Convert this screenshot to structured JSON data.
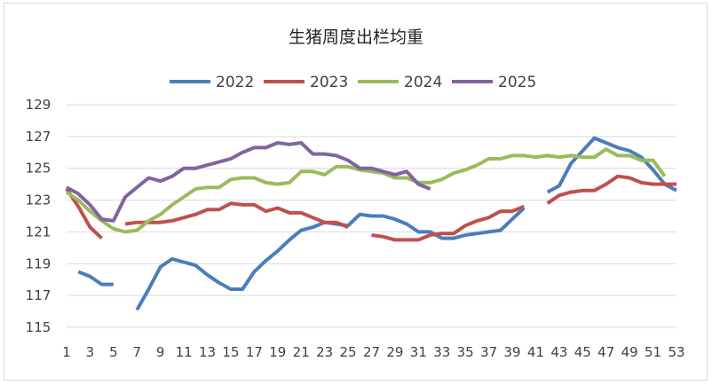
{
  "chart_data": {
    "type": "line",
    "title": "生猪周度出栏均重",
    "xlabel": "",
    "ylabel": "",
    "ylim": [
      115,
      129
    ],
    "yticks": [
      115,
      117,
      119,
      121,
      123,
      125,
      127,
      129
    ],
    "x": [
      1,
      2,
      3,
      4,
      5,
      6,
      7,
      8,
      9,
      10,
      11,
      12,
      13,
      14,
      15,
      16,
      17,
      18,
      19,
      20,
      21,
      22,
      23,
      24,
      25,
      26,
      27,
      28,
      29,
      30,
      31,
      32,
      33,
      34,
      35,
      36,
      37,
      38,
      39,
      40,
      41,
      42,
      43,
      44,
      45,
      46,
      47,
      48,
      49,
      50,
      51,
      52,
      53
    ],
    "xtick_labels": [
      "1",
      "3",
      "5",
      "7",
      "9",
      "11",
      "13",
      "15",
      "17",
      "19",
      "21",
      "23",
      "25",
      "27",
      "29",
      "31",
      "33",
      "35",
      "37",
      "39",
      "41",
      "43",
      "45",
      "47",
      "49",
      "51",
      "53"
    ],
    "legend_position": "top",
    "grid": true,
    "series": [
      {
        "name": "2022",
        "color": "#4a7ebb",
        "values": [
          null,
          118.5,
          118.2,
          117.7,
          117.7,
          null,
          116.1,
          117.4,
          118.8,
          119.3,
          119.1,
          118.9,
          118.3,
          117.8,
          117.4,
          117.4,
          118.5,
          119.2,
          119.8,
          120.5,
          121.1,
          121.3,
          121.6,
          121.5,
          121.4,
          122.1,
          122.0,
          122.0,
          121.8,
          121.5,
          121.0,
          121.0,
          120.6,
          120.6,
          120.8,
          120.9,
          121.0,
          121.1,
          121.8,
          122.5,
          null,
          123.5,
          123.9,
          125.3,
          126.1,
          126.9,
          126.6,
          126.3,
          126.1,
          125.7,
          124.9,
          124.0,
          123.6
        ]
      },
      {
        "name": "2023",
        "color": "#c0504d",
        "values": [
          123.7,
          122.6,
          121.3,
          120.6,
          null,
          121.5,
          121.6,
          121.6,
          121.6,
          121.7,
          121.9,
          122.1,
          122.4,
          122.4,
          122.8,
          122.7,
          122.7,
          122.3,
          122.5,
          122.2,
          122.2,
          121.9,
          121.6,
          121.6,
          121.3,
          null,
          120.8,
          120.7,
          120.5,
          120.5,
          120.5,
          120.8,
          120.9,
          120.9,
          121.4,
          121.7,
          121.9,
          122.3,
          122.3,
          122.6,
          null,
          122.8,
          123.3,
          123.5,
          123.6,
          123.6,
          124.0,
          124.5,
          124.4,
          124.1,
          124.0,
          124.0,
          124.0
        ]
      },
      {
        "name": "2024",
        "color": "#9bbb59",
        "values": [
          123.5,
          123.0,
          122.3,
          121.7,
          121.2,
          121.0,
          121.1,
          121.7,
          122.1,
          122.7,
          123.2,
          123.7,
          123.8,
          123.8,
          124.3,
          124.4,
          124.4,
          124.1,
          124.0,
          124.1,
          124.8,
          124.8,
          124.6,
          125.1,
          125.1,
          124.9,
          124.8,
          124.7,
          124.4,
          124.4,
          124.1,
          124.1,
          124.3,
          124.7,
          124.9,
          125.2,
          125.6,
          125.6,
          125.8,
          125.8,
          125.7,
          125.8,
          125.7,
          125.8,
          125.7,
          125.7,
          126.2,
          125.8,
          125.8,
          125.5,
          125.5,
          124.5,
          null
        ]
      },
      {
        "name": "2025",
        "color": "#8064a2",
        "values": [
          123.8,
          123.4,
          122.7,
          121.8,
          121.7,
          123.2,
          123.8,
          124.4,
          124.2,
          124.5,
          125.0,
          125.0,
          125.2,
          125.4,
          125.6,
          126.0,
          126.3,
          126.3,
          126.6,
          126.5,
          126.6,
          125.9,
          125.9,
          125.8,
          125.5,
          125.0,
          125.0,
          124.8,
          124.6,
          124.8,
          124.0,
          123.7,
          null,
          null,
          null,
          null,
          null,
          null,
          null,
          null,
          null,
          null,
          null,
          null,
          null,
          null,
          null,
          null,
          null,
          null,
          null,
          null,
          null
        ]
      }
    ]
  }
}
